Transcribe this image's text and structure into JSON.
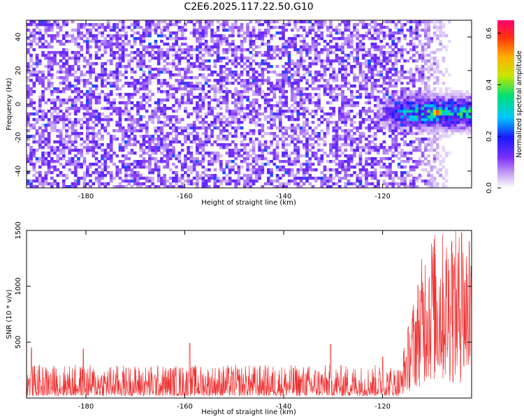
{
  "title": "C2E6.2025.117.22.50.G10",
  "colors": {
    "snr_line": "#ee3333",
    "spectrum_base": "#7b2ff7"
  },
  "chart_data": [
    {
      "type": "heatmap",
      "xlabel": "Height of straight line (km)",
      "ylabel": "Frequency (Hz)",
      "xlim": [
        -192,
        -102
      ],
      "ylim": [
        -50,
        50
      ],
      "x_ticks": [
        -180,
        -160,
        -140,
        -120
      ],
      "y_ticks": [
        -40,
        -20,
        0,
        20,
        40
      ],
      "colorbar": {
        "label": "Normalized spectral amplitude",
        "range": [
          0.0,
          0.65
        ],
        "ticks": [
          0.0,
          0.2,
          0.4,
          0.6
        ],
        "tick_labels": [
          "0.0",
          "0.2",
          "0.4",
          "0.6"
        ]
      },
      "features": {
        "background_noise_x_range": [
          -192,
          -115
        ],
        "background_noise_level": 0.1,
        "signal_x_range": [
          -122,
          -102
        ],
        "signal_frequency_hz": -5,
        "signal_frequency_spread_hz": 10,
        "peak": {
          "x": -109,
          "y": -5,
          "value": 0.62
        }
      }
    },
    {
      "type": "line",
      "xlabel": "Height of straight line (km)",
      "ylabel": "SNR (10 * v/v)",
      "xlim": [
        -192,
        -102
      ],
      "ylim": [
        0,
        1500
      ],
      "x_ticks": [
        -180,
        -160,
        -140,
        -120
      ],
      "y_ticks": [
        500,
        1000,
        1500
      ],
      "series": [
        {
          "baseline_segments": [
            {
              "x": [
                -192,
                -116
              ],
              "typical": 150,
              "spread": [
                20,
                300
              ],
              "spikes": [
                [
                  -191,
                  450
                ],
                [
                  -180.5,
                  440
                ],
                [
                  -159,
                  490
                ],
                [
                  -130.5,
                  480
                ],
                [
                  -120,
                  370
                ]
              ]
            },
            {
              "x": [
                -116,
                -102
              ],
              "typical": 700,
              "spread": [
                100,
                1500
              ],
              "spikes": [
                [
                  -110,
                  1250
                ],
                [
                  -106,
                  1400
                ],
                [
                  -104,
                  1480
                ],
                [
                  -102.5,
                  1400
                ]
              ]
            }
          ]
        }
      ]
    }
  ]
}
